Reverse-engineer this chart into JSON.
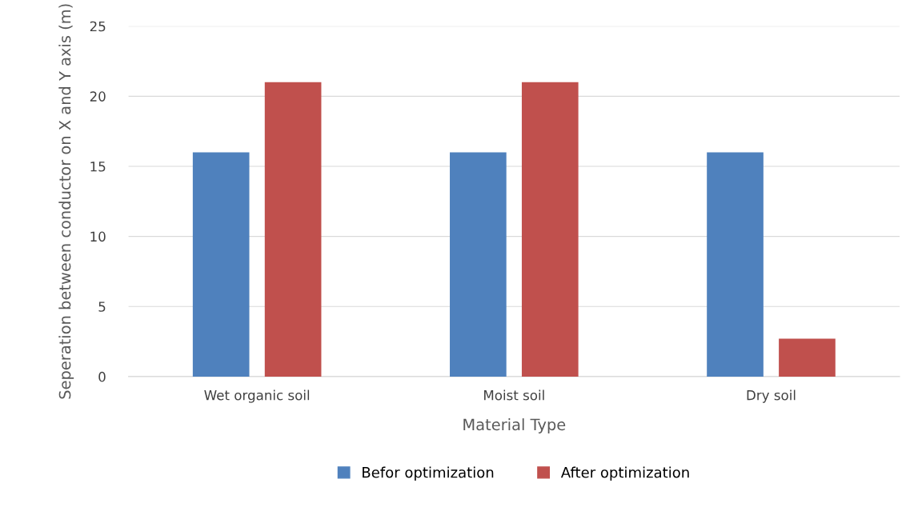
{
  "chart_data": {
    "type": "bar",
    "xlabel": "Material Type",
    "ylabel": "Seperation between conductor on X and Y axis (m)",
    "categories": [
      "Wet organic soil",
      "Moist soil",
      "Dry soil"
    ],
    "series": [
      {
        "name": "Befor optimization",
        "color": "#4f81bd",
        "values": [
          16,
          16,
          16
        ]
      },
      {
        "name": "After optimization",
        "color": "#c0504d",
        "values": [
          21,
          21,
          2.7
        ]
      }
    ],
    "ylim": [
      0,
      25
    ],
    "yticks": [
      0,
      5,
      10,
      15,
      20,
      25
    ],
    "grid": "y",
    "legend": "bottom"
  }
}
